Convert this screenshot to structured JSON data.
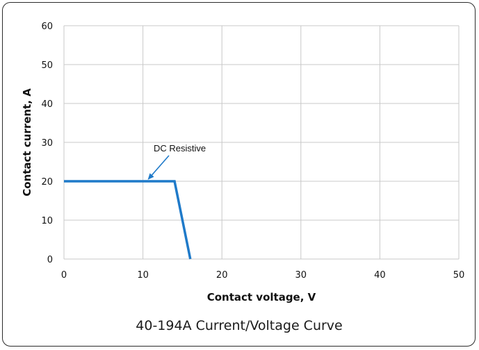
{
  "chart_data": {
    "type": "line",
    "title": "40-194A Current/Voltage Curve",
    "xlabel": "Contact voltage, V",
    "ylabel": "Contact current, A",
    "xlim": [
      0,
      50
    ],
    "ylim": [
      0,
      60
    ],
    "xticks": [
      0,
      10,
      20,
      30,
      40,
      50
    ],
    "yticks": [
      0,
      10,
      20,
      30,
      40,
      50,
      60
    ],
    "grid": true,
    "series": [
      {
        "name": "DC Resistive",
        "x": [
          0,
          14,
          16
        ],
        "y": [
          20,
          20,
          0
        ],
        "color": "#1f7ac9"
      }
    ],
    "annotations": [
      {
        "text": "DC Resistive",
        "points_to": {
          "x": 10.5,
          "y": 20
        }
      }
    ]
  },
  "colors": {
    "series": "#1f7ac9",
    "grid": "#c8c8c8",
    "frame": "#2b2b2b"
  }
}
